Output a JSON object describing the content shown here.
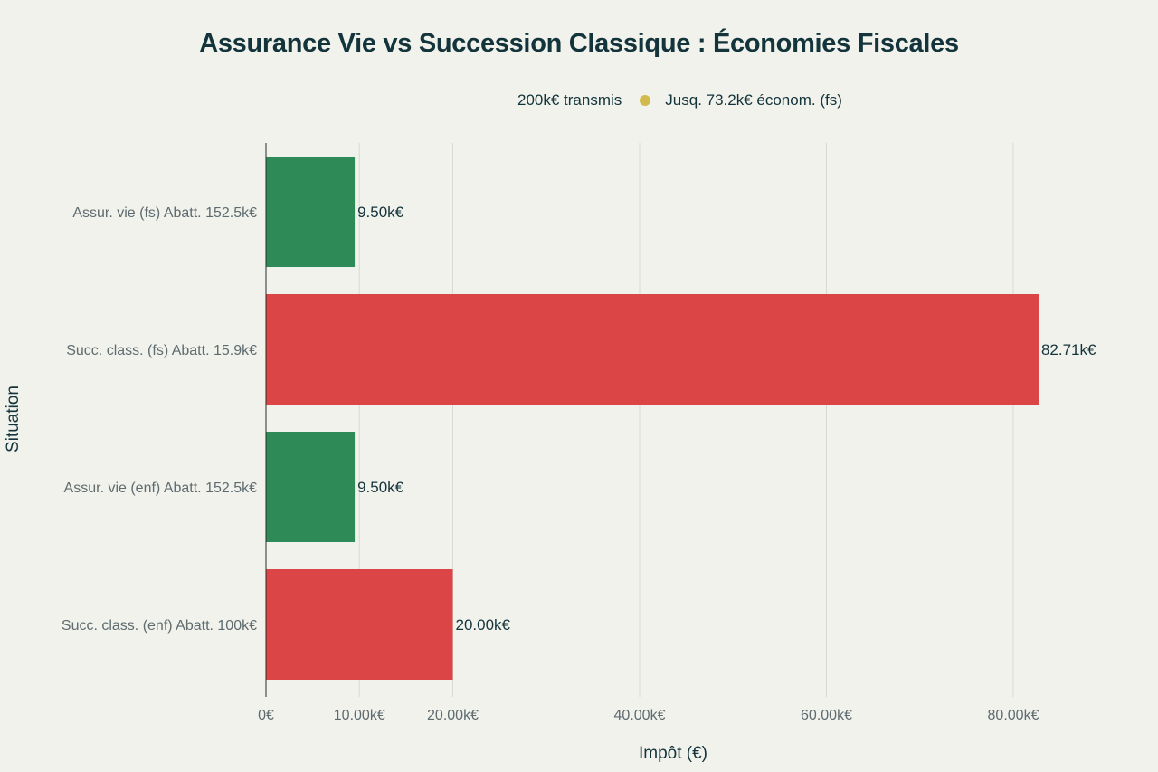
{
  "chart_data": {
    "type": "bar",
    "orientation": "horizontal",
    "title": "Assurance Vie vs Succession Classique : Économies Fiscales",
    "legend": {
      "note": "200k€ transmis",
      "entry": "Jusq. 73.2k€ économ. (fs)",
      "marker_color": "#d2ba4c"
    },
    "xlabel": "Impôt (€)",
    "ylabel": "Situation",
    "xlim": [
      0,
      90000
    ],
    "x_ticks": [
      {
        "value": 0,
        "label": "0€"
      },
      {
        "value": 10000,
        "label": "10.00k€"
      },
      {
        "value": 20000,
        "label": "20.00k€"
      },
      {
        "value": 40000,
        "label": "40.00k€"
      },
      {
        "value": 60000,
        "label": "60.00k€"
      },
      {
        "value": 80000,
        "label": "80.00k€"
      }
    ],
    "grid": true,
    "categories": [
      "Assur. vie (fs) Abatt. 152.5k€",
      "Succ. class. (fs) Abatt. 15.9k€",
      "Assur. vie (enf) Abatt. 152.5k€",
      "Succ. class. (enf) Abatt. 100k€"
    ],
    "values": [
      9500,
      82710,
      9500,
      20000
    ],
    "value_labels": [
      "9.50k€",
      "82.71k€",
      "9.50k€",
      "20.00k€"
    ],
    "colors": [
      "#2e8b57",
      "#db4545",
      "#2e8b57",
      "#db4545"
    ]
  }
}
